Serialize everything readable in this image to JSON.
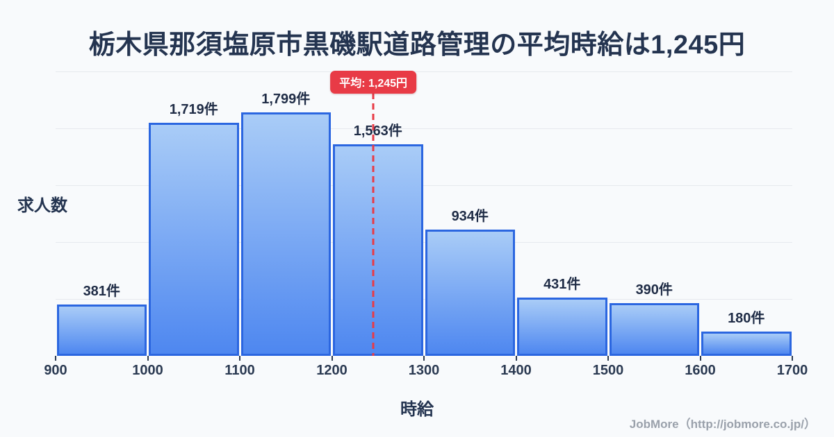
{
  "title": "栃木県那須塩原市黒磯駅道路管理の平均時給は1,245円",
  "chart_data": {
    "type": "bar",
    "title": "栃木県那須塩原市黒磯駅道路管理の平均時給は1,245円",
    "xlabel": "時給",
    "ylabel": "求人数",
    "bin_edges": [
      900,
      1000,
      1100,
      1200,
      1300,
      1400,
      1500,
      1600,
      1700
    ],
    "x_tick_labels": [
      "900",
      "1000",
      "1100",
      "1200",
      "1300",
      "1400",
      "1500",
      "1600",
      "1700"
    ],
    "values": [
      381,
      1719,
      1799,
      1563,
      934,
      431,
      390,
      180
    ],
    "bar_labels": [
      "381件",
      "1,719件",
      "1,799件",
      "1,563件",
      "934件",
      "431件",
      "390件",
      "180件"
    ],
    "ylim": [
      0,
      2100
    ],
    "grid": "horizontal",
    "gridline_count": 5,
    "legend": "none",
    "average_line": {
      "x": 1245,
      "label": "平均: 1,245円"
    },
    "colors": {
      "background": "#f8fafc",
      "bar_fill_top": "#a9ccf7",
      "bar_fill_bottom": "#4e87f0",
      "bar_border": "#2b66e0",
      "grid": "#e6e9ee",
      "text": "#243450",
      "average_red": "#e83b46"
    }
  },
  "footer": {
    "credit": "JobMore（http://jobmore.co.jp/）"
  }
}
